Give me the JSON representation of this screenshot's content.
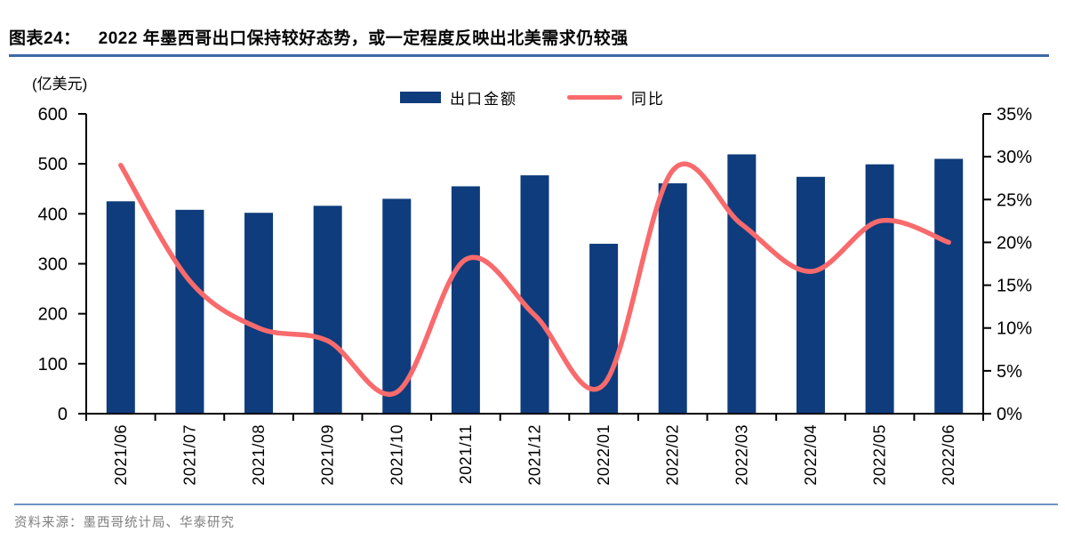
{
  "header": {
    "figure_label": "图表24：",
    "title": "2022 年墨西哥出口保持较好态势，或一定程度反映出北美需求仍较强"
  },
  "footer": {
    "source": "资料来源：墨西哥统计局、华泰研究"
  },
  "chart_data": {
    "type": "bar+line combo",
    "unit_label": "(亿美元)",
    "categories": [
      "2021/06",
      "2021/07",
      "2021/08",
      "2021/09",
      "2021/10",
      "2021/11",
      "2021/12",
      "2022/01",
      "2022/02",
      "2022/03",
      "2022/04",
      "2022/05",
      "2022/06"
    ],
    "series": [
      {
        "name": "出口金额",
        "type": "bar",
        "axis": "left",
        "values": [
          425,
          408,
          402,
          416,
          430,
          455,
          477,
          340,
          461,
          519,
          474,
          499,
          510
        ]
      },
      {
        "name": "同比",
        "type": "line",
        "axis": "right",
        "values": [
          29.0,
          15.5,
          10.0,
          8.5,
          2.5,
          18.0,
          11.5,
          3.4,
          28.4,
          22.1,
          16.6,
          22.5,
          20.0
        ]
      }
    ],
    "left_axis": {
      "min": 0,
      "max": 600,
      "step": 100,
      "label": "(亿美元)"
    },
    "right_axis": {
      "min": 0,
      "max": 35,
      "step": 5,
      "suffix": "%"
    },
    "legend_position": "top-center",
    "grid": false,
    "colors": {
      "bar": "#0e3c7d",
      "line": "#f96a6c",
      "axis": "#000000"
    }
  }
}
